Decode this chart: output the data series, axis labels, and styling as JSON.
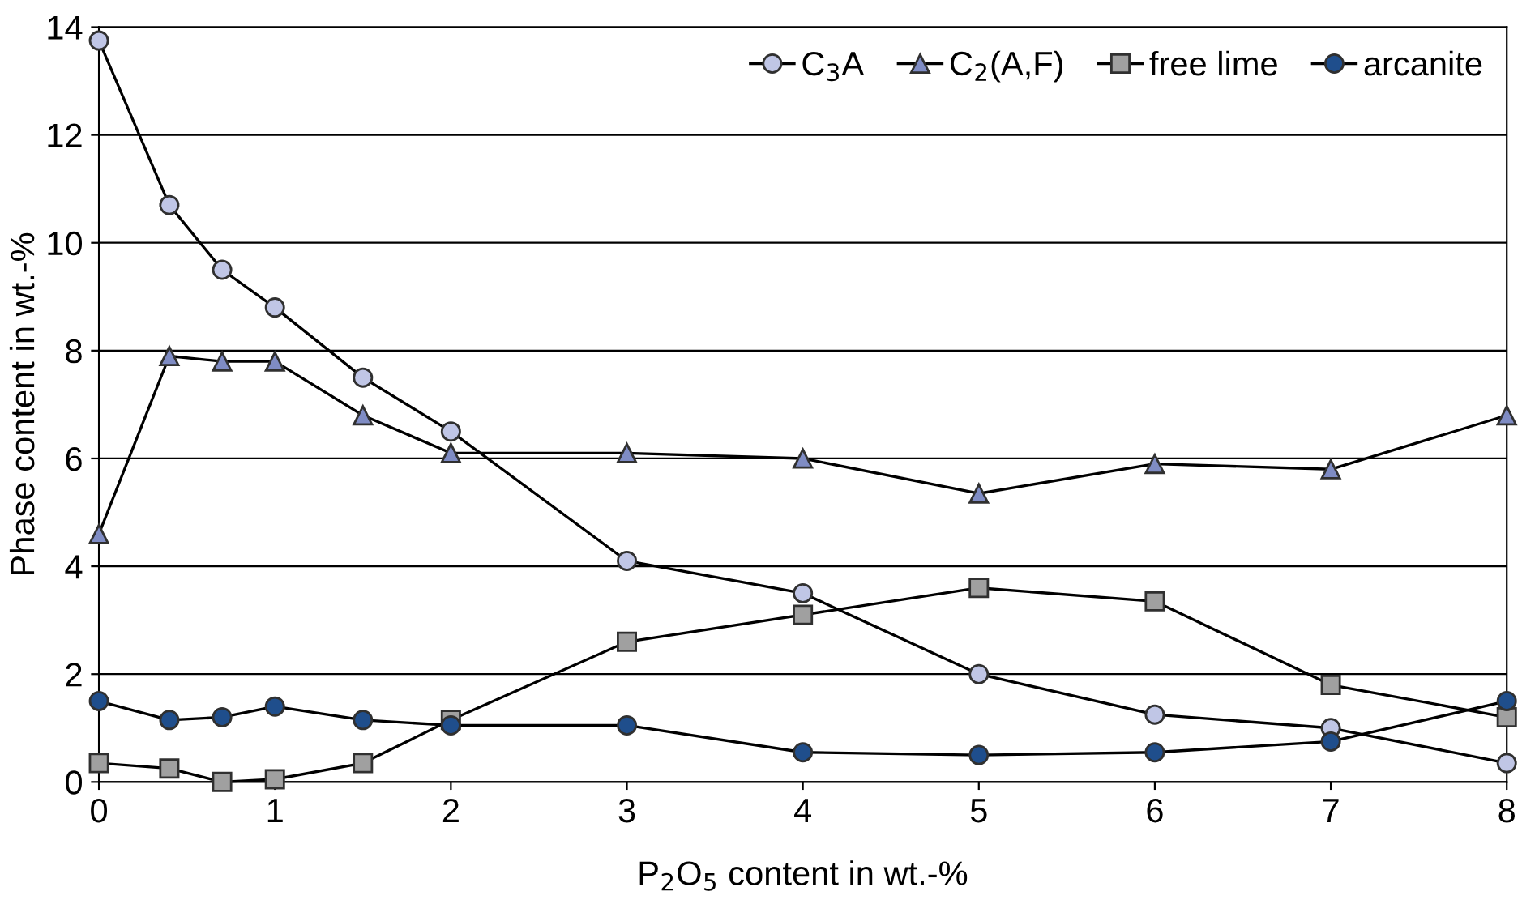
{
  "chart_data": {
    "type": "line",
    "xlabel": "P$_{2}$O$_{5}$ content in wt.-%",
    "ylabel": "Phase content in wt.-%",
    "x": [
      0,
      0.4,
      0.7,
      1,
      1.5,
      2,
      3,
      4,
      5,
      6,
      7,
      8
    ],
    "series": [
      {
        "name": "C$_{3}$A",
        "color": "#c0c6e6",
        "marker": "circle",
        "values": [
          13.75,
          10.7,
          9.5,
          8.8,
          7.5,
          6.5,
          4.1,
          3.5,
          2.0,
          1.25,
          1.0,
          0.35
        ]
      },
      {
        "name": "C$_{2}$(A,F)",
        "color": "#7f8cc4",
        "marker": "triangle",
        "values": [
          4.6,
          7.9,
          7.8,
          7.8,
          6.8,
          6.1,
          6.1,
          6.0,
          5.35,
          5.9,
          5.8,
          6.8
        ]
      },
      {
        "name": "free lime",
        "color": "#a0a0a0",
        "marker": "square",
        "values": [
          0.35,
          0.25,
          0.0,
          0.05,
          0.35,
          1.15,
          2.6,
          3.1,
          3.6,
          3.35,
          1.8,
          1.2
        ]
      },
      {
        "name": "arcanite",
        "color": "#1f4e8c",
        "marker": "circle",
        "values": [
          1.5,
          1.15,
          1.2,
          1.4,
          1.15,
          1.05,
          1.05,
          0.55,
          0.5,
          0.55,
          0.75,
          1.5
        ]
      }
    ],
    "xlim": [
      0,
      8
    ],
    "xticks": [
      0,
      1,
      2,
      3,
      4,
      5,
      6,
      7,
      8
    ],
    "ylim": [
      0,
      14
    ],
    "yticks": [
      0,
      2,
      4,
      6,
      8,
      10,
      12,
      14
    ],
    "grid": "y",
    "legend": "top right",
    "line_style": "solid"
  }
}
